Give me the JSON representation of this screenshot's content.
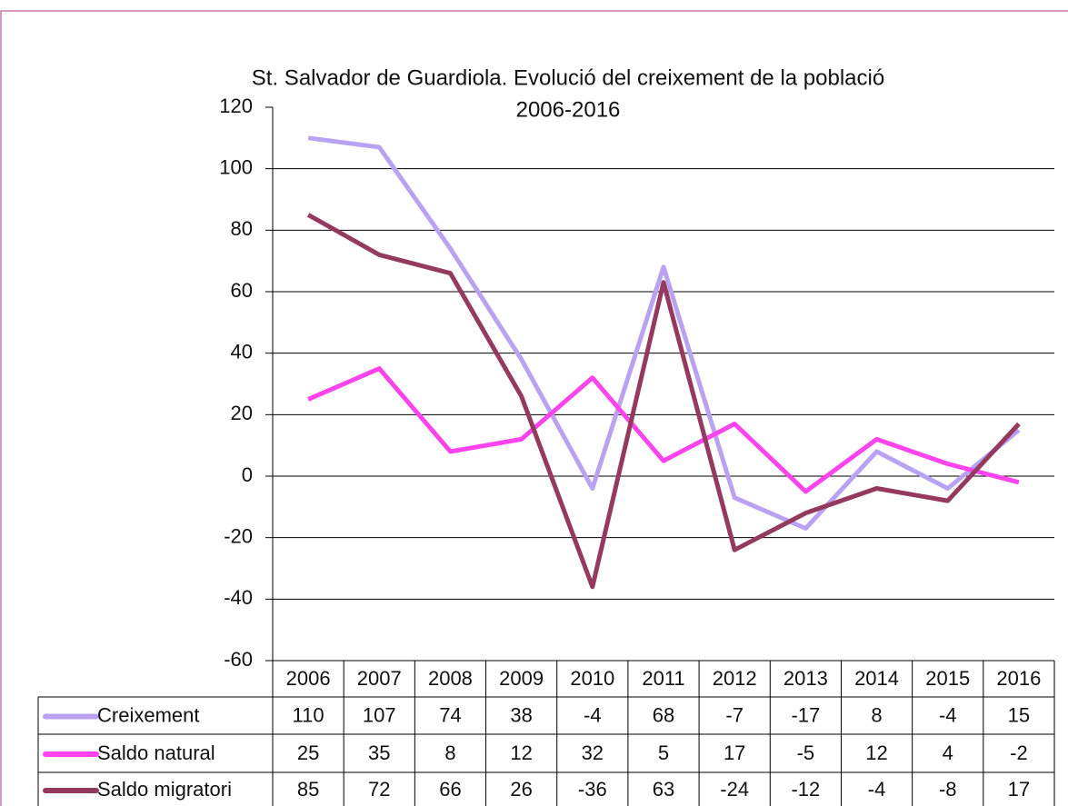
{
  "chart_data": {
    "type": "line",
    "title": "St. Salvador de Guardiola. Evolució del creixement de la població",
    "subtitle": "2006-2016",
    "categories": [
      "2006",
      "2007",
      "2008",
      "2009",
      "2010",
      "2011",
      "2012",
      "2013",
      "2014",
      "2015",
      "2016"
    ],
    "series": [
      {
        "name": "Creixement",
        "color": "#b9a2f2",
        "values": [
          110,
          107,
          74,
          38,
          -4,
          68,
          -7,
          -17,
          8,
          -4,
          15
        ]
      },
      {
        "name": "Saldo natural",
        "color": "#ff44ee",
        "values": [
          25,
          35,
          8,
          12,
          32,
          5,
          17,
          -5,
          12,
          4,
          -2
        ]
      },
      {
        "name": "Saldo migratori",
        "color": "#943a5e",
        "values": [
          85,
          72,
          66,
          26,
          -36,
          63,
          -24,
          -12,
          -4,
          -8,
          17
        ]
      }
    ],
    "ylim": [
      -60,
      120
    ],
    "yticks": [
      -60,
      -40,
      -20,
      0,
      20,
      40,
      60,
      80,
      100,
      120
    ],
    "grid": true
  }
}
